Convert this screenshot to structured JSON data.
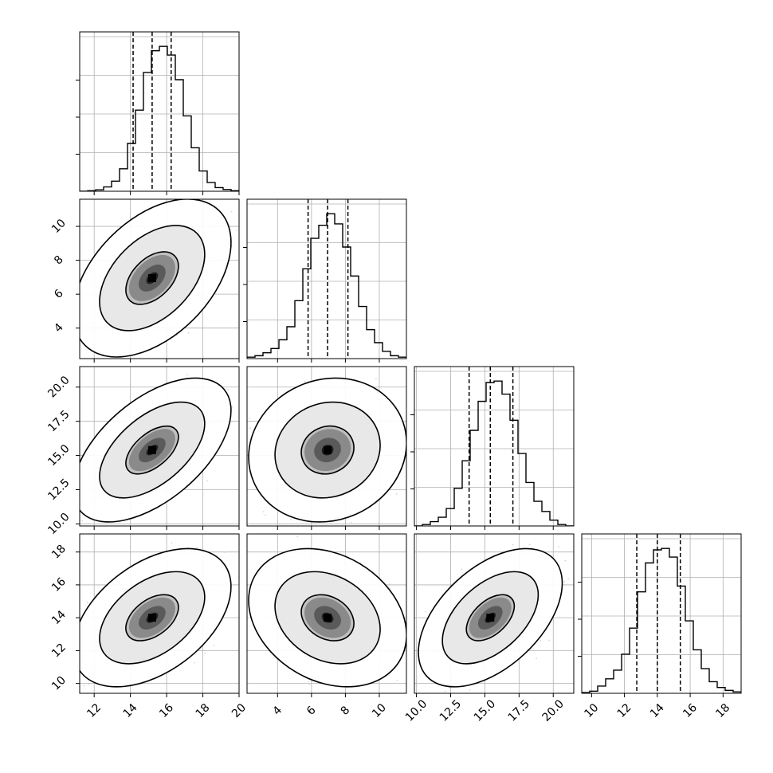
{
  "chart_data": {
    "type": "corner",
    "grid": true,
    "parameters": [
      {
        "mean": 15.2,
        "sd": 1.45,
        "lo": 14.15,
        "med": 15.2,
        "hi": 16.25,
        "range": [
          11.2,
          20
        ],
        "ticks": [
          12,
          14,
          16,
          18,
          20
        ],
        "tick_labels": [
          "12",
          "14",
          "16",
          "18",
          "20"
        ]
      },
      {
        "mean": 6.95,
        "sd": 1.55,
        "lo": 5.8,
        "med": 6.95,
        "hi": 8.15,
        "range": [
          2.2,
          11.6
        ],
        "ticks": [
          4,
          6,
          8,
          10
        ],
        "tick_labels": [
          "4",
          "6",
          "8",
          "10"
        ]
      },
      {
        "mean": 15.4,
        "sd": 1.75,
        "lo": 13.85,
        "med": 15.4,
        "hi": 17.05,
        "range": [
          9.85,
          21.5
        ],
        "ticks": [
          10,
          12.5,
          15,
          17.5,
          20
        ],
        "tick_labels": [
          "10.0",
          "12.5",
          "15.0",
          "17.5",
          "20.0"
        ]
      },
      {
        "mean": 14.0,
        "sd": 1.4,
        "lo": 12.75,
        "med": 14.0,
        "hi": 15.4,
        "range": [
          9.4,
          19.1
        ],
        "ticks": [
          10,
          12,
          14,
          16,
          18
        ],
        "tick_labels": [
          "10",
          "12",
          "14",
          "16",
          "18"
        ]
      }
    ],
    "correlations": {
      "1-0": 0.45,
      "2-0": 0.55,
      "2-1": 0.1,
      "3-0": 0.45,
      "3-1": -0.25,
      "3-2": 0.5
    },
    "histograms": [
      [
        0,
        0.004,
        0.01,
        0.03,
        0.07,
        0.155,
        0.33,
        0.56,
        0.82,
        0.97,
        1.0,
        0.94,
        0.77,
        0.52,
        0.3,
        0.14,
        0.06,
        0.025,
        0.012,
        0.004
      ],
      [
        0.01,
        0.02,
        0.04,
        0.07,
        0.13,
        0.22,
        0.4,
        0.62,
        0.83,
        0.92,
        1.0,
        0.93,
        0.77,
        0.57,
        0.36,
        0.2,
        0.11,
        0.05,
        0.02,
        0.01
      ],
      [
        0,
        0.01,
        0.03,
        0.06,
        0.12,
        0.26,
        0.45,
        0.66,
        0.86,
        0.99,
        1.0,
        0.91,
        0.73,
        0.5,
        0.3,
        0.17,
        0.1,
        0.04,
        0.01,
        0
      ],
      [
        0.005,
        0.015,
        0.05,
        0.1,
        0.16,
        0.27,
        0.45,
        0.7,
        0.9,
        0.99,
        1.0,
        0.94,
        0.74,
        0.5,
        0.3,
        0.17,
        0.08,
        0.04,
        0.02,
        0.01
      ]
    ]
  }
}
